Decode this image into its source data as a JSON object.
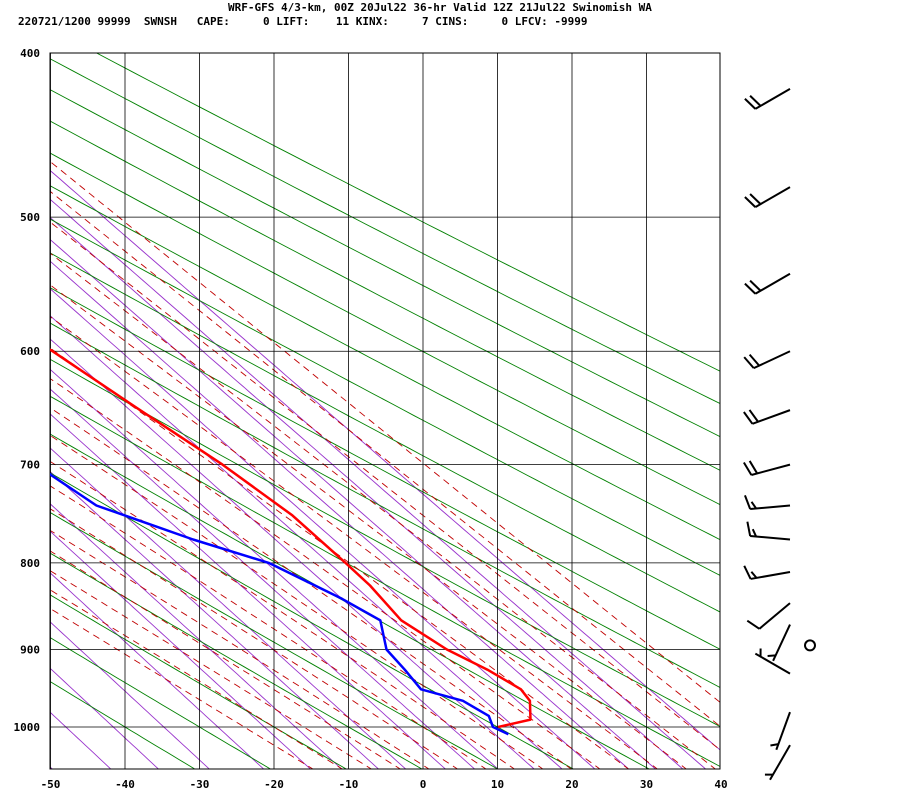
{
  "header": {
    "title": "WRF-GFS 4/3-km, 00Z 20Jul22 36-hr Valid 12Z 21Jul22 Swinomish WA",
    "indices": "220721/1200 99999  SWNSH   CAPE:     0 LIFT:    11 KINX:     7 CINS:     0 LFCV: -9999"
  },
  "chart_data": {
    "type": "skew-t",
    "x_axis": {
      "ticks": [
        -50,
        -40,
        -30,
        -20,
        -10,
        0,
        10,
        20,
        30,
        40
      ],
      "range": [
        -50,
        40
      ]
    },
    "y_axis": {
      "ticks": [
        400,
        500,
        600,
        700,
        800,
        900,
        1000
      ],
      "range": [
        400,
        1045
      ],
      "scale": "log"
    },
    "colors": {
      "temperature": "#ff0000",
      "dewpoint": "#0000ff",
      "dry_adiabat": "#008000",
      "moist_adiabat": "#c00000",
      "mixing_ratio": "#9933cc",
      "grid": "#000000"
    },
    "series": [
      {
        "values": [
          {
            "p": 1000,
            "t": 10.1
          },
          {
            "p": 990,
            "t": 15.4
          },
          {
            "p": 965,
            "t": 17.8
          },
          {
            "p": 950,
            "t": 18.1
          },
          {
            "p": 925,
            "t": 16.2
          },
          {
            "p": 900,
            "t": 13.4
          },
          {
            "p": 865,
            "t": 11.1
          },
          {
            "p": 825,
            "t": 11.5
          },
          {
            "p": 800,
            "t": 11.2
          },
          {
            "p": 750,
            "t": 10.3
          },
          {
            "p": 700,
            "t": 7.6
          },
          {
            "p": 650,
            "t": 3.7
          },
          {
            "p": 600,
            "t": -0.3
          },
          {
            "p": 550,
            "t": -6.5
          },
          {
            "p": 500,
            "t": -12.3
          },
          {
            "p": 420,
            "t": -22.5
          }
        ]
      },
      {
        "values": [
          {
            "p": 1010,
            "t": 10.5
          },
          {
            "p": 1000,
            "t": 9.4
          },
          {
            "p": 985,
            "t": 10.3
          },
          {
            "p": 965,
            "t": 8.8
          },
          {
            "p": 950,
            "t": 4.7
          },
          {
            "p": 925,
            "t": 5.1
          },
          {
            "p": 900,
            "t": 5.3
          },
          {
            "p": 865,
            "t": 8.3
          },
          {
            "p": 840,
            "t": 6.0
          },
          {
            "p": 800,
            "t": 0.9
          },
          {
            "p": 775,
            "t": -6.2
          },
          {
            "p": 740,
            "t": -14.7
          },
          {
            "p": 700,
            "t": -17.5
          },
          {
            "p": 650,
            "t": -20.0
          },
          {
            "p": 600,
            "t": -25.3
          },
          {
            "p": 540,
            "t": -36.6
          },
          {
            "p": 480,
            "t": -40.0
          },
          {
            "p": 450,
            "t": -39.9
          },
          {
            "p": 420,
            "t": -39.9
          }
        ]
      }
    ],
    "wind_barbs": [
      {
        "p": 420,
        "dir": 240,
        "spd": 20
      },
      {
        "p": 480,
        "dir": 240,
        "spd": 20
      },
      {
        "p": 540,
        "dir": 240,
        "spd": 20
      },
      {
        "p": 600,
        "dir": 245,
        "spd": 20
      },
      {
        "p": 650,
        "dir": 250,
        "spd": 20
      },
      {
        "p": 700,
        "dir": 255,
        "spd": 20
      },
      {
        "p": 740,
        "dir": 265,
        "spd": 15
      },
      {
        "p": 775,
        "dir": 275,
        "spd": 15
      },
      {
        "p": 810,
        "dir": 260,
        "spd": 15
      },
      {
        "p": 845,
        "dir": 230,
        "spd": 10
      },
      {
        "p": 870,
        "dir": 205,
        "spd": 5
      },
      {
        "p": 895,
        "dir": 0,
        "spd": 0
      },
      {
        "p": 930,
        "dir": 300,
        "spd": 5
      },
      {
        "p": 980,
        "dir": 200,
        "spd": 5
      },
      {
        "p": 1025,
        "dir": 210,
        "spd": 5
      }
    ]
  }
}
